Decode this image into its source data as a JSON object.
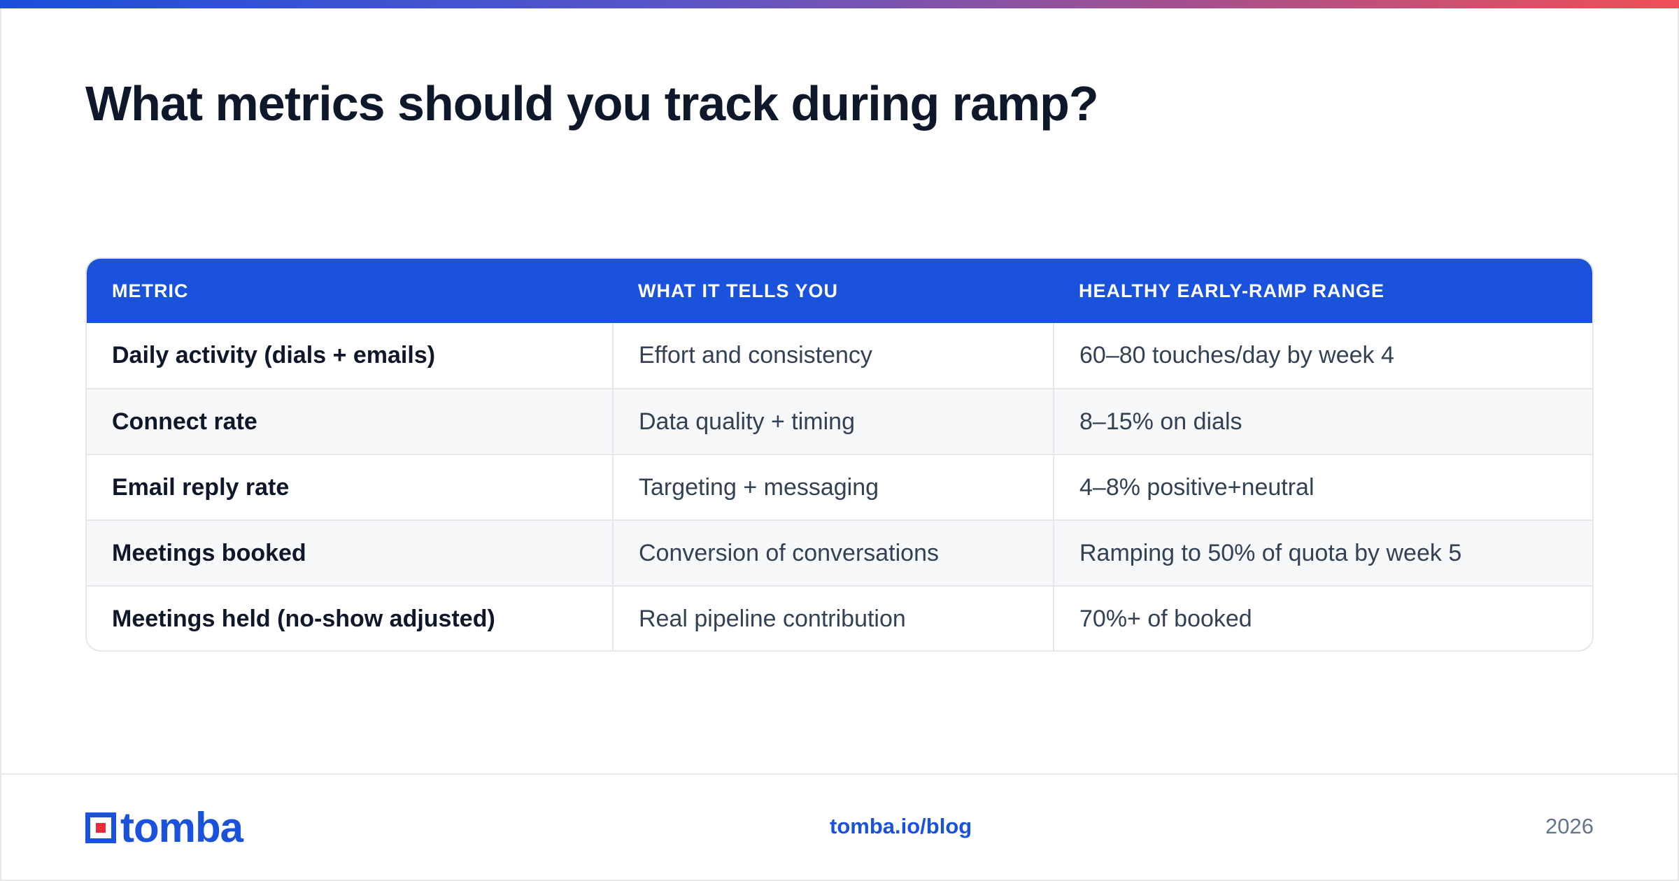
{
  "title": "What metrics should you track during ramp?",
  "table": {
    "headers": [
      "METRIC",
      "WHAT IT TELLS YOU",
      "HEALTHY EARLY-RAMP RANGE"
    ],
    "rows": [
      [
        "Daily activity (dials + emails)",
        "Effort and consistency",
        "60–80 touches/day by week 4"
      ],
      [
        "Connect rate",
        "Data quality + timing",
        "8–15% on dials"
      ],
      [
        "Email reply rate",
        "Targeting + messaging",
        "4–8% positive+neutral"
      ],
      [
        "Meetings booked",
        "Conversion of conversations",
        "Ramping to 50% of quota by week 5"
      ],
      [
        "Meetings held (no-show adjusted)",
        "Real pipeline contribution",
        "70%+ of booked"
      ]
    ]
  },
  "footer": {
    "logo_text": "tomba",
    "logo_icon": "tomba-logo-icon",
    "link": "tomba.io/blog",
    "year": "2026"
  },
  "colors": {
    "accent": "#1a52dc",
    "logo_red": "#ef2b3a",
    "title": "#0f172a"
  }
}
